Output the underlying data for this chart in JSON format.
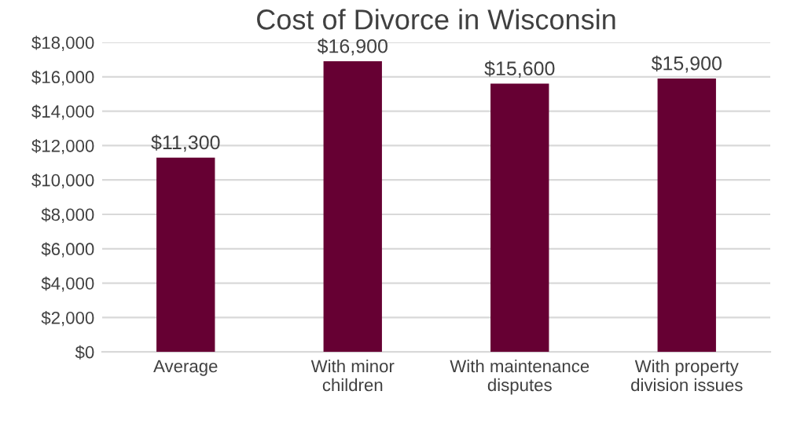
{
  "chart_data": {
    "type": "bar",
    "title": "Cost of Divorce in Wisconsin",
    "categories": [
      "Average",
      "With minor children",
      "With maintenance disputes",
      "With property division issues"
    ],
    "values": [
      11300,
      16900,
      15600,
      15900
    ],
    "value_labels": [
      "$11,300",
      "$16,900",
      "$15,600",
      "$15,900"
    ],
    "color": "#660033",
    "ylim": [
      0,
      18000
    ],
    "yticks": [
      {
        "value": 0,
        "label": "$0"
      },
      {
        "value": 2000,
        "label": "$2,000"
      },
      {
        "value": 4000,
        "label": "$4,000"
      },
      {
        "value": 6000,
        "label": "$6,000"
      },
      {
        "value": 8000,
        "label": "$8,000"
      },
      {
        "value": 10000,
        "label": "$10,000"
      },
      {
        "value": 12000,
        "label": "$12,000"
      },
      {
        "value": 14000,
        "label": "$14,000"
      },
      {
        "value": 16000,
        "label": "$16,000"
      },
      {
        "value": 18000,
        "label": "$18,000"
      }
    ],
    "grid": "y"
  }
}
